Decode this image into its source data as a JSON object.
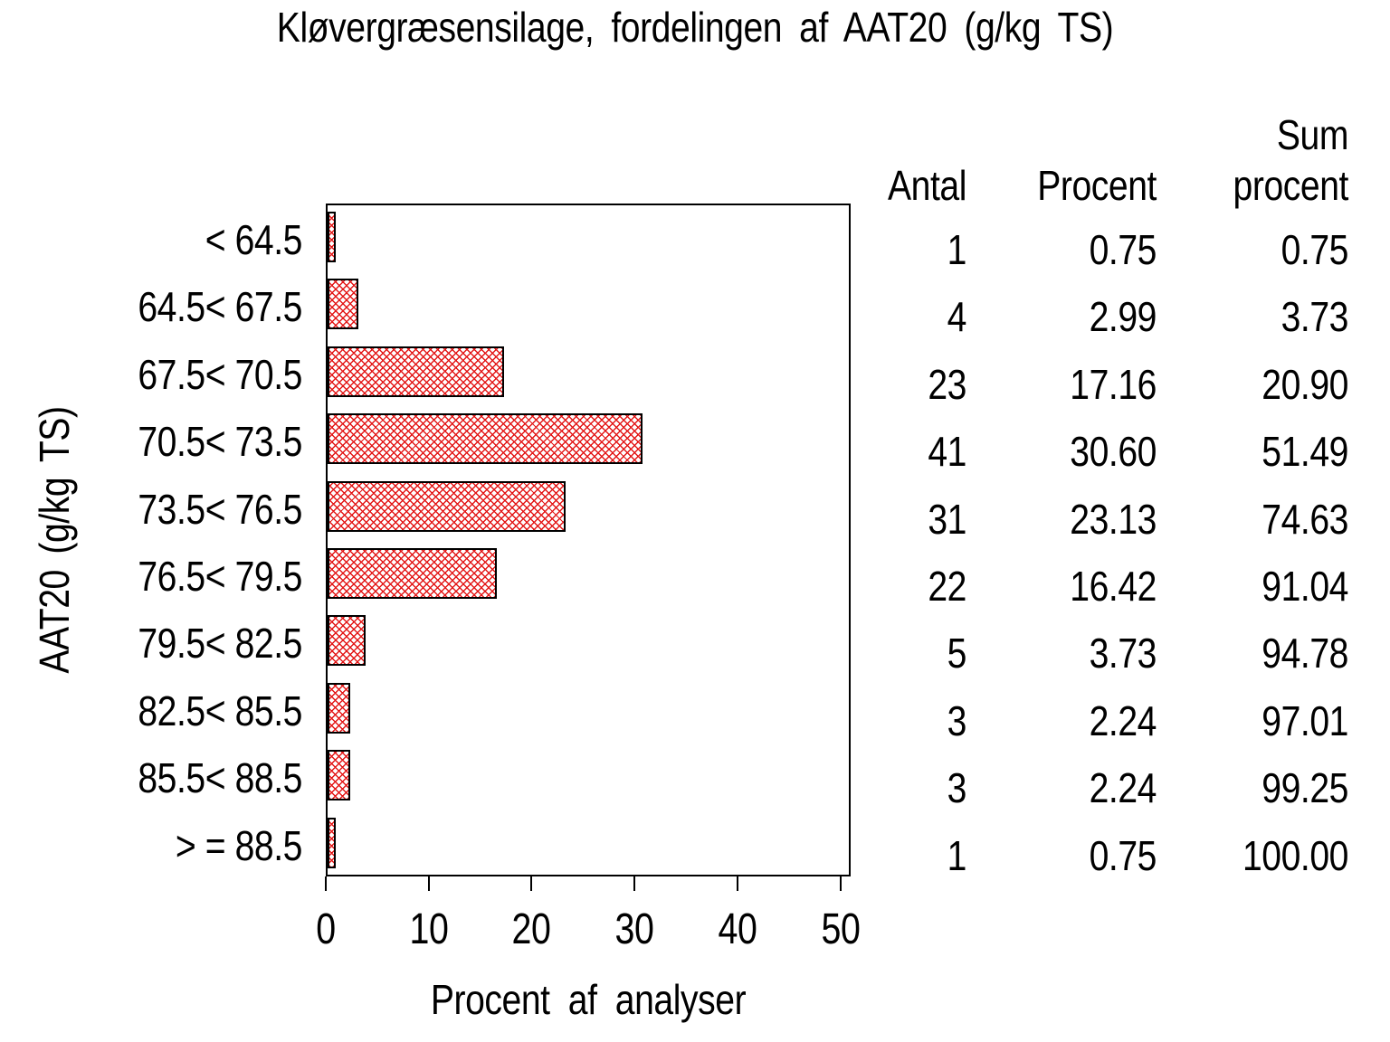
{
  "title": "Kløvergræsensilage, fordelingen af AAT20 (g/kg TS)",
  "y_axis_label": "AAT20 (g/kg TS)",
  "x_axis_label": "Procent af analyser",
  "colors": {
    "background": "#ffffff",
    "text": "#000000",
    "axis": "#000000",
    "bar_hatch": "#e31717",
    "bar_border": "#000000"
  },
  "table": {
    "headers": {
      "antal": "Antal",
      "procent": "Procent",
      "sum_line1": "Sum",
      "sum_line2": "procent"
    },
    "rows": [
      {
        "category": "< 64.5",
        "antal": "1",
        "procent": "0.75",
        "sum": "0.75"
      },
      {
        "category": "64.5< 67.5",
        "antal": "4",
        "procent": "2.99",
        "sum": "3.73"
      },
      {
        "category": "67.5< 70.5",
        "antal": "23",
        "procent": "17.16",
        "sum": "20.90"
      },
      {
        "category": "70.5< 73.5",
        "antal": "41",
        "procent": "30.60",
        "sum": "51.49"
      },
      {
        "category": "73.5< 76.5",
        "antal": "31",
        "procent": "23.13",
        "sum": "74.63"
      },
      {
        "category": "76.5< 79.5",
        "antal": "22",
        "procent": "16.42",
        "sum": "91.04"
      },
      {
        "category": "79.5< 82.5",
        "antal": "5",
        "procent": "3.73",
        "sum": "94.78"
      },
      {
        "category": "82.5< 85.5",
        "antal": "3",
        "procent": "2.24",
        "sum": "97.01"
      },
      {
        "category": "85.5< 88.5",
        "antal": "3",
        "procent": "2.24",
        "sum": "99.25"
      },
      {
        "category": "> = 88.5",
        "antal": "1",
        "procent": "0.75",
        "sum": "100.00"
      }
    ]
  },
  "chart_data": {
    "type": "bar",
    "orientation": "horizontal",
    "title": "Kløvergræsensilage, fordelingen af AAT20 (g/kg TS)",
    "xlabel": "Procent af analyser",
    "ylabel": "AAT20 (g/kg TS)",
    "categories": [
      "< 64.5",
      "64.5< 67.5",
      "67.5< 70.5",
      "70.5< 73.5",
      "73.5< 76.5",
      "76.5< 79.5",
      "79.5< 82.5",
      "82.5< 85.5",
      "85.5< 88.5",
      "> = 88.5"
    ],
    "values": [
      0.75,
      2.99,
      17.16,
      30.6,
      23.13,
      16.42,
      3.73,
      2.24,
      2.24,
      0.75
    ],
    "counts": [
      1,
      4,
      23,
      41,
      31,
      22,
      5,
      3,
      3,
      1
    ],
    "cumulative_percent": [
      0.75,
      3.73,
      20.9,
      51.49,
      74.63,
      91.04,
      94.78,
      97.01,
      99.25,
      100.0
    ],
    "x_ticks": [
      0,
      10,
      20,
      30,
      40,
      50
    ],
    "xlim": [
      0,
      51
    ],
    "grid": false,
    "legend": false,
    "bar_fill": "red-crosshatch"
  }
}
